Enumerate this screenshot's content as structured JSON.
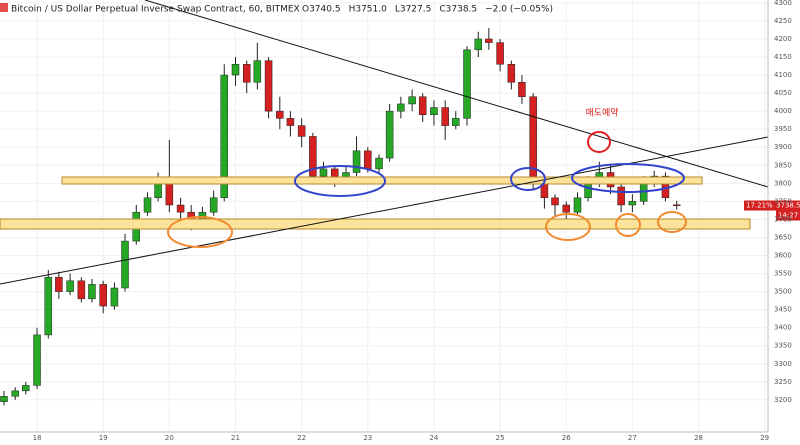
{
  "chart_data": {
    "type": "candlestick",
    "title": "Bitcoin / US Dollar Perpetual Inverse Swap Contract, 60, BITMEX",
    "ohlc_legend": [
      "O3740.5",
      "H3751.0",
      "L3727.5",
      "C3738.5",
      "−2.0 (−0.05%)"
    ],
    "annotation": "매도예약",
    "percent_label": "17.21%",
    "last_price": 3738.5,
    "countdown": "14:27",
    "up_color": "#26a826",
    "down_color": "#d42020",
    "grid": true,
    "x": [
      17.5,
      17.67,
      17.83,
      18,
      18.17,
      18.33,
      18.5,
      18.67,
      18.83,
      19,
      19.17,
      19.33,
      19.5,
      19.67,
      19.83,
      20,
      20.17,
      20.33,
      20.5,
      20.67,
      20.83,
      21,
      21.17,
      21.33,
      21.5,
      21.67,
      21.83,
      22,
      22.17,
      22.33,
      22.5,
      22.67,
      22.83,
      23,
      23.17,
      23.33,
      23.5,
      23.67,
      23.83,
      24,
      24.17,
      24.33,
      24.5,
      24.67,
      24.83,
      25,
      25.17,
      25.33,
      25.5,
      25.67,
      25.83,
      26,
      26.17,
      26.33,
      26.5,
      26.67,
      26.83,
      27,
      27.17,
      27.33,
      27.5,
      27.67
    ],
    "open": [
      3195,
      3210,
      3225,
      3240,
      3380,
      3540,
      3500,
      3530,
      3480,
      3520,
      3460,
      3510,
      3640,
      3720,
      3760,
      3800,
      3740,
      3720,
      3700,
      3720,
      3760,
      4100,
      4130,
      4080,
      4140,
      4000,
      3980,
      3960,
      3930,
      3820,
      3840,
      3810,
      3830,
      3890,
      3840,
      3870,
      4000,
      4020,
      4040,
      3990,
      4010,
      3960,
      3980,
      4170,
      4200,
      4190,
      4130,
      4080,
      4040,
      3800,
      3760,
      3740,
      3720,
      3760,
      3800,
      3830,
      3790,
      3740,
      3750,
      3800,
      3820,
      3740.5
    ],
    "high": [
      3225,
      3235,
      3250,
      3400,
      3560,
      3555,
      3550,
      3540,
      3535,
      3530,
      3525,
      3660,
      3740,
      3775,
      3830,
      3920,
      3760,
      3740,
      3735,
      3780,
      4130,
      4150,
      4140,
      4190,
      4150,
      4040,
      4000,
      3980,
      3940,
      3860,
      3850,
      3850,
      3930,
      3900,
      3880,
      4020,
      4040,
      4060,
      4050,
      4030,
      4030,
      4000,
      4180,
      4220,
      4230,
      4200,
      4140,
      4100,
      4050,
      3810,
      3770,
      3750,
      3775,
      3820,
      3860,
      3850,
      3800,
      3770,
      3820,
      3835,
      3830,
      3751
    ],
    "low": [
      3185,
      3200,
      3215,
      3230,
      3370,
      3480,
      3490,
      3470,
      3470,
      3440,
      3450,
      3500,
      3630,
      3710,
      3750,
      3720,
      3690,
      3670,
      3690,
      3710,
      3750,
      4070,
      4050,
      4060,
      3980,
      3950,
      3930,
      3900,
      3800,
      3810,
      3790,
      3800,
      3820,
      3830,
      3830,
      3860,
      3980,
      4000,
      3970,
      3960,
      3920,
      3950,
      3960,
      4150,
      4170,
      4110,
      4060,
      4020,
      3780,
      3730,
      3710,
      3690,
      3710,
      3750,
      3790,
      3770,
      3720,
      3720,
      3740,
      3790,
      3750,
      3727.5
    ],
    "close": [
      3210,
      3225,
      3240,
      3380,
      3540,
      3500,
      3530,
      3480,
      3520,
      3460,
      3510,
      3640,
      3720,
      3760,
      3800,
      3740,
      3720,
      3700,
      3720,
      3760,
      4100,
      4130,
      4080,
      4140,
      4000,
      3980,
      3960,
      3930,
      3820,
      3840,
      3810,
      3830,
      3890,
      3840,
      3870,
      4000,
      4020,
      4040,
      3990,
      4010,
      3960,
      3980,
      4170,
      4200,
      4190,
      4130,
      4080,
      4040,
      3800,
      3760,
      3740,
      3720,
      3760,
      3800,
      3830,
      3790,
      3740,
      3750,
      3800,
      3820,
      3760,
      3738.5
    ],
    "xlim": [
      17.44,
      29.05
    ],
    "xticks": [
      18,
      19,
      20,
      21,
      22,
      23,
      24,
      25,
      26,
      27,
      28,
      29
    ],
    "ylim": [
      3111,
      4308
    ],
    "yticks": [
      3200,
      3250,
      3300,
      3350,
      3400,
      3450,
      3500,
      3550,
      3600,
      3650,
      3700,
      3750,
      3800,
      3850,
      3900,
      3950,
      4000,
      4050,
      4100,
      4150,
      4200,
      4250,
      4300
    ]
  }
}
